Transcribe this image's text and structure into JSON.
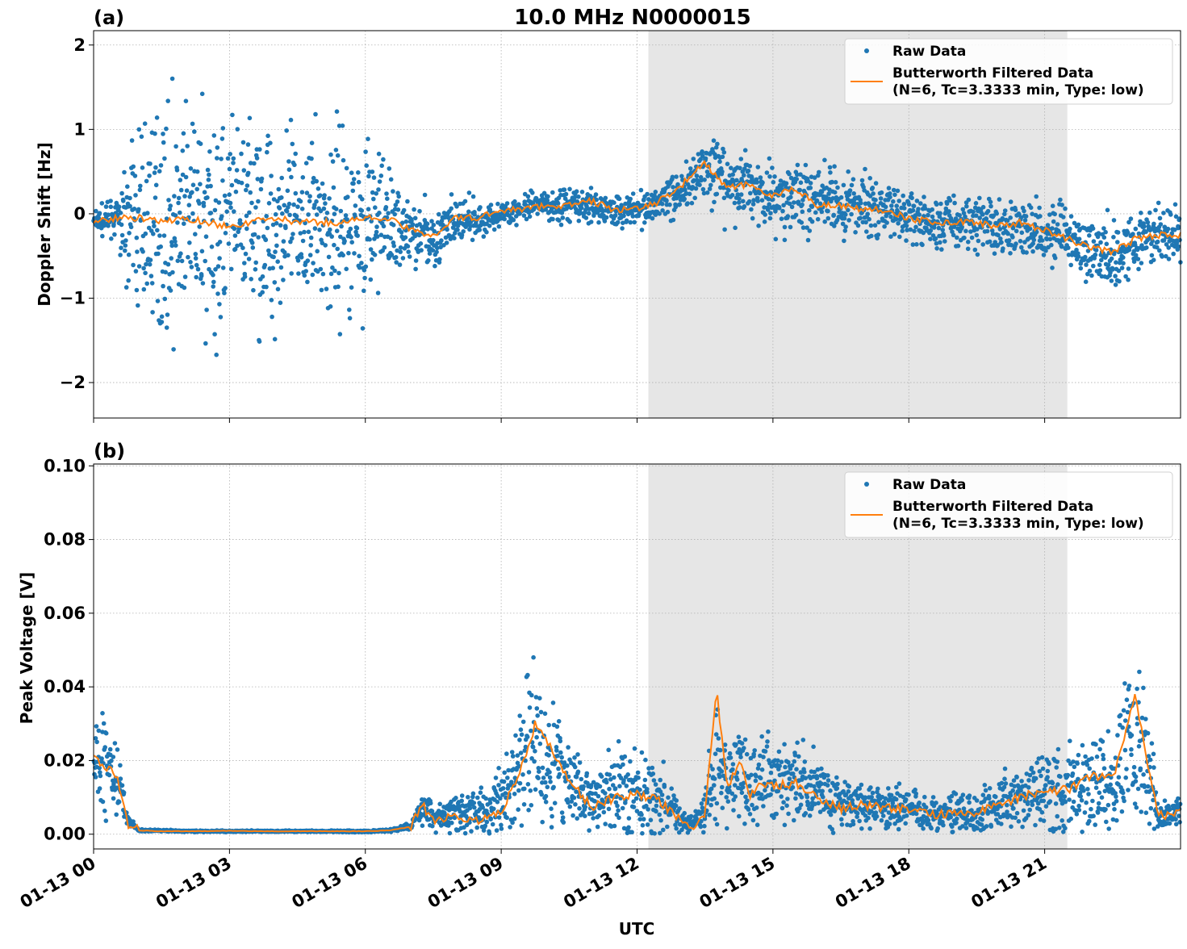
{
  "title": "10.0 MHz N0000015",
  "xlabel": "UTC",
  "x_tick_labels": [
    "01-13 00",
    "01-13 03",
    "01-13 06",
    "01-13 09",
    "01-13 12",
    "01-13 15",
    "01-13 18",
    "01-13 21"
  ],
  "legend": {
    "raw": "Raw Data",
    "filtered_line1": "Butterworth Filtered Data",
    "filtered_line2": "(N=6, Tc=3.3333 min, Type: low)"
  },
  "colors": {
    "raw": "#1f77b4",
    "filtered": "#ff7f0e",
    "shade": "#e6e6e6"
  },
  "chart_data": [
    {
      "type": "scatter",
      "panel_label": "(a)",
      "ylabel": "Doppler Shift [Hz]",
      "x_unit": "hours UTC on 01-13",
      "xlim": [
        0,
        24
      ],
      "ylim": [
        -2.42,
        2.17
      ],
      "yticks": [
        -2,
        -1,
        0,
        1,
        2
      ],
      "ytick_labels": [
        "−2",
        "−1",
        "0",
        "1",
        "2"
      ],
      "shaded_span": [
        12.25,
        21.5
      ],
      "grid": true,
      "legend_position": "top-right",
      "series": [
        {
          "name": "Raw Data",
          "style": "points",
          "x": [
            0,
            0.5,
            1,
            1.5,
            2,
            2.5,
            3,
            3.5,
            4,
            4.5,
            5,
            5.5,
            6,
            6.5,
            7,
            7.5,
            8,
            8.5,
            9,
            9.5,
            10,
            10.5,
            11,
            11.5,
            12,
            12.5,
            13,
            13.5,
            14,
            14.5,
            15,
            15.5,
            16,
            16.5,
            17,
            17.5,
            18,
            18.5,
            19,
            19.5,
            20,
            20.5,
            21,
            21.5,
            22,
            22.5,
            23,
            23.5,
            24
          ],
          "y_center": [
            -0.1,
            -0.05,
            -0.1,
            -0.1,
            -0.1,
            -0.1,
            -0.15,
            -0.1,
            -0.1,
            -0.1,
            -0.1,
            -0.1,
            -0.1,
            -0.1,
            -0.2,
            -0.3,
            -0.1,
            -0.1,
            0,
            0.05,
            0.1,
            0.1,
            0.1,
            0.05,
            0.05,
            0.15,
            0.3,
            0.55,
            0.3,
            0.35,
            0.2,
            0.25,
            0.15,
            0.1,
            0.1,
            0.05,
            -0.05,
            -0.1,
            -0.1,
            -0.1,
            -0.15,
            -0.15,
            -0.2,
            -0.3,
            -0.45,
            -0.5,
            -0.3,
            -0.25,
            -0.3
          ],
          "y_spread": [
            0.15,
            0.2,
            1.2,
            1.3,
            1.4,
            1.4,
            1.35,
            1.3,
            1.2,
            1.2,
            1.15,
            1.1,
            1.0,
            0.8,
            0.45,
            0.35,
            0.3,
            0.2,
            0.15,
            0.15,
            0.2,
            0.2,
            0.25,
            0.2,
            0.2,
            0.25,
            0.35,
            0.45,
            0.4,
            0.4,
            0.45,
            0.45,
            0.4,
            0.4,
            0.35,
            0.35,
            0.35,
            0.35,
            0.35,
            0.35,
            0.35,
            0.35,
            0.35,
            0.4,
            0.45,
            0.5,
            0.35,
            0.35,
            0.35
          ]
        },
        {
          "name": "Butterworth Filtered Data (N=6, Tc=3.3333 min, Type: low)",
          "style": "line",
          "x": [
            0,
            0.5,
            1,
            1.5,
            2,
            2.5,
            3,
            3.5,
            4,
            4.5,
            5,
            5.5,
            6,
            6.5,
            7,
            7.5,
            8,
            8.5,
            9,
            9.5,
            10,
            10.5,
            11,
            11.5,
            12,
            12.5,
            13,
            13.5,
            14,
            14.5,
            15,
            15.5,
            16,
            16.5,
            17,
            17.5,
            18,
            18.5,
            19,
            19.5,
            20,
            20.5,
            21,
            21.5,
            22,
            22.5,
            23,
            23.5,
            24
          ],
          "y": [
            -0.1,
            -0.05,
            -0.05,
            -0.1,
            -0.05,
            -0.1,
            -0.15,
            -0.1,
            -0.05,
            -0.1,
            -0.1,
            -0.1,
            -0.05,
            -0.05,
            -0.2,
            -0.25,
            -0.05,
            -0.05,
            0.05,
            0.05,
            0.1,
            0.1,
            0.15,
            0.05,
            0.05,
            0.15,
            0.35,
            0.6,
            0.3,
            0.35,
            0.2,
            0.3,
            0.1,
            0.1,
            0.05,
            0.05,
            -0.05,
            -0.1,
            -0.1,
            -0.1,
            -0.15,
            -0.1,
            -0.2,
            -0.3,
            -0.4,
            -0.45,
            -0.3,
            -0.25,
            -0.25
          ]
        }
      ]
    },
    {
      "type": "scatter",
      "panel_label": "(b)",
      "ylabel": "Peak Voltage [V]",
      "x_unit": "hours UTC on 01-13",
      "xlim": [
        0,
        24
      ],
      "ylim": [
        -0.004,
        0.1005
      ],
      "yticks": [
        0.0,
        0.02,
        0.04,
        0.06,
        0.08,
        0.1
      ],
      "ytick_labels": [
        "0.00",
        "0.02",
        "0.04",
        "0.06",
        "0.08",
        "0.10"
      ],
      "shaded_span": [
        12.25,
        21.5
      ],
      "grid": true,
      "legend_position": "top-right",
      "series": [
        {
          "name": "Raw Data",
          "style": "points",
          "x": [
            0,
            0.25,
            0.5,
            0.75,
            1,
            1.5,
            2,
            3,
            4,
            5,
            6,
            6.5,
            7,
            7.25,
            7.5,
            8,
            8.5,
            9,
            9.25,
            9.5,
            9.75,
            10,
            10.5,
            11,
            11.5,
            12,
            12.5,
            13,
            13.25,
            13.5,
            13.75,
            14,
            14.25,
            14.5,
            14.75,
            15,
            15.5,
            16,
            16.5,
            17,
            17.5,
            18,
            18.5,
            19,
            19.5,
            20,
            20.5,
            21,
            21.5,
            22,
            22.5,
            23,
            23.25,
            23.5,
            24
          ],
          "y_center": [
            0.018,
            0.02,
            0.018,
            0.004,
            0.001,
            0.001,
            0.0008,
            0.0008,
            0.0008,
            0.0008,
            0.0008,
            0.001,
            0.002,
            0.008,
            0.005,
            0.006,
            0.006,
            0.008,
            0.015,
            0.02,
            0.025,
            0.02,
            0.015,
            0.008,
            0.012,
            0.012,
            0.01,
            0.004,
            0.003,
            0.006,
            0.02,
            0.012,
            0.018,
            0.012,
            0.015,
            0.015,
            0.015,
            0.012,
            0.008,
            0.008,
            0.007,
            0.007,
            0.005,
            0.006,
            0.006,
            0.008,
            0.01,
            0.012,
            0.012,
            0.015,
            0.015,
            0.025,
            0.022,
            0.005,
            0.006
          ],
          "y_spread": [
            0.012,
            0.014,
            0.012,
            0.002,
            0.0003,
            0.0003,
            0.0002,
            0.0002,
            0.0002,
            0.0002,
            0.0003,
            0.0004,
            0.001,
            0.005,
            0.004,
            0.005,
            0.006,
            0.01,
            0.015,
            0.022,
            0.02,
            0.018,
            0.012,
            0.008,
            0.012,
            0.015,
            0.01,
            0.003,
            0.002,
            0.008,
            0.02,
            0.012,
            0.016,
            0.01,
            0.012,
            0.012,
            0.012,
            0.01,
            0.007,
            0.007,
            0.006,
            0.006,
            0.005,
            0.006,
            0.006,
            0.008,
            0.01,
            0.012,
            0.013,
            0.016,
            0.016,
            0.03,
            0.03,
            0.004,
            0.004
          ]
        },
        {
          "name": "Butterworth Filtered Data (N=6, Tc=3.3333 min, Type: low)",
          "style": "line",
          "x": [
            0,
            0.25,
            0.5,
            0.75,
            1,
            1.5,
            2,
            3,
            4,
            5,
            6,
            6.5,
            7,
            7.25,
            7.5,
            8,
            8.5,
            9,
            9.25,
            9.5,
            9.75,
            10,
            10.5,
            11,
            11.5,
            12,
            12.5,
            13,
            13.25,
            13.5,
            13.75,
            14,
            14.25,
            14.5,
            14.75,
            15,
            15.5,
            16,
            16.5,
            17,
            17.5,
            18,
            18.5,
            19,
            19.5,
            20,
            20.5,
            21,
            21.5,
            22,
            22.5,
            23,
            23.25,
            23.5,
            24
          ],
          "y": [
            0.022,
            0.018,
            0.016,
            0.003,
            0.001,
            0.0008,
            0.0008,
            0.0009,
            0.0008,
            0.0008,
            0.0008,
            0.001,
            0.002,
            0.008,
            0.004,
            0.005,
            0.004,
            0.006,
            0.013,
            0.02,
            0.03,
            0.025,
            0.015,
            0.007,
            0.01,
            0.011,
            0.009,
            0.003,
            0.002,
            0.006,
            0.04,
            0.012,
            0.02,
            0.01,
            0.014,
            0.013,
            0.014,
            0.01,
            0.007,
            0.008,
            0.007,
            0.007,
            0.005,
            0.006,
            0.006,
            0.008,
            0.01,
            0.012,
            0.012,
            0.016,
            0.015,
            0.038,
            0.02,
            0.005,
            0.006
          ]
        }
      ]
    }
  ]
}
